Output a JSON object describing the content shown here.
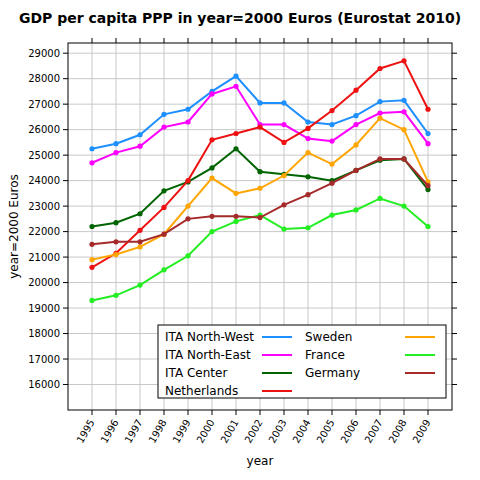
{
  "chart_data": {
    "type": "line",
    "title": "GDP per capita PPP in year=2000 Euros (Eurostat 2010)",
    "x_label": "year",
    "y_label": "year=2000 Euros",
    "x": [
      1995,
      1996,
      1997,
      1998,
      1999,
      2000,
      2001,
      2002,
      2003,
      2004,
      2005,
      2006,
      2007,
      2008,
      2009
    ],
    "series": [
      {
        "name": "ITA North-West",
        "color": "#1e8fff",
        "values": [
          25250,
          25450,
          25800,
          26600,
          26800,
          27500,
          28100,
          27050,
          27050,
          26300,
          26200,
          26550,
          27100,
          27150,
          25850
        ]
      },
      {
        "name": "ITA North-East",
        "color": "#ff00ff",
        "values": [
          24700,
          25100,
          25350,
          26100,
          26300,
          27400,
          27700,
          26200,
          26200,
          25650,
          25550,
          26200,
          26650,
          26700,
          25450
        ]
      },
      {
        "name": "ITA Center",
        "color": "#006400",
        "values": [
          22200,
          22350,
          22700,
          23600,
          23950,
          24500,
          25250,
          24350,
          24250,
          24150,
          24000,
          24400,
          24800,
          24850,
          23650
        ]
      },
      {
        "name": "Netherlands",
        "color": "#ee1111",
        "values": [
          20600,
          21150,
          22050,
          22950,
          24000,
          25600,
          25850,
          26100,
          25500,
          26050,
          26750,
          27550,
          28400,
          28700,
          26800
        ]
      },
      {
        "name": "Sweden",
        "color": "#ffa500",
        "values": [
          20900,
          21100,
          21400,
          21900,
          23000,
          24100,
          23500,
          23700,
          24200,
          25100,
          24650,
          25400,
          26450,
          26000,
          23950
        ]
      },
      {
        "name": "France",
        "color": "#22ee22",
        "values": [
          19300,
          19500,
          19900,
          20500,
          21050,
          22000,
          22400,
          22650,
          22100,
          22150,
          22650,
          22850,
          23300,
          23000,
          22200
        ]
      },
      {
        "name": "Germany",
        "color": "#a52a2a",
        "values": [
          21500,
          21600,
          21600,
          21900,
          22500,
          22600,
          22600,
          22550,
          23050,
          23450,
          23900,
          24400,
          24850,
          24850,
          23800
        ]
      }
    ],
    "xlim": [
      1994,
      2010
    ],
    "xticks": [
      1995,
      1996,
      1997,
      1998,
      1999,
      2000,
      2001,
      2002,
      2003,
      2004,
      2005,
      2006,
      2007,
      2008,
      2009
    ],
    "ylim": [
      15000,
      29400
    ],
    "yticks": [
      16000,
      17000,
      18000,
      19000,
      20000,
      21000,
      22000,
      23000,
      24000,
      25000,
      26000,
      27000,
      28000,
      29000
    ],
    "grid": true,
    "legend": "lower right",
    "marker": "circle"
  }
}
